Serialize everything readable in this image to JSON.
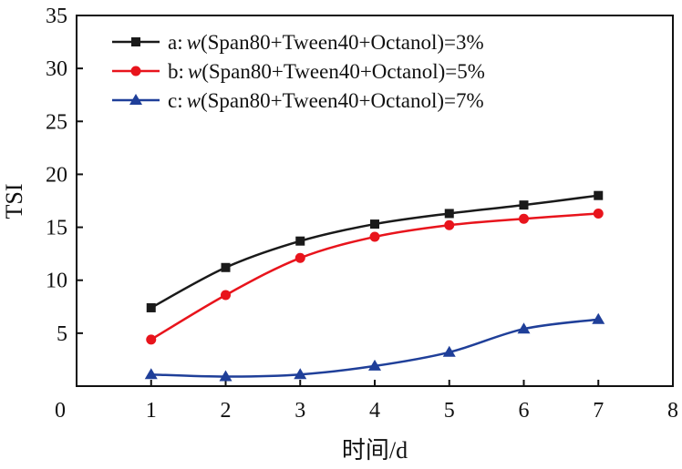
{
  "chart_data": {
    "type": "line",
    "x_ticks": [
      0,
      1,
      2,
      3,
      4,
      5,
      6,
      7,
      8
    ],
    "y_ticks": [
      5,
      10,
      15,
      20,
      25,
      30,
      35
    ],
    "x_origin_label": "0",
    "xlim": [
      0,
      8
    ],
    "ylim": [
      0,
      35
    ],
    "xlabel": "时间/d",
    "ylabel": "TSI",
    "grid": false,
    "legend_position": "top-left",
    "series": [
      {
        "legend_prefix": "a:",
        "legend_w": "w",
        "legend_rest": "(Span80+Tween40+Octanol)=3%",
        "color": "#1a1a1a",
        "marker": "square",
        "x": [
          1,
          2,
          3,
          4,
          5,
          6,
          7
        ],
        "y": [
          7.4,
          11.2,
          13.7,
          15.3,
          16.3,
          17.1,
          18.0
        ]
      },
      {
        "legend_prefix": "b:",
        "legend_w": "w",
        "legend_rest": "(Span80+Tween40+Octanol)=5%",
        "color": "#e8141c",
        "marker": "circle",
        "x": [
          1,
          2,
          3,
          4,
          5,
          6,
          7
        ],
        "y": [
          4.4,
          8.6,
          12.1,
          14.1,
          15.2,
          15.8,
          16.3
        ]
      },
      {
        "legend_prefix": "c:",
        "legend_w": "w",
        "legend_rest": "(Span80+Tween40+Octanol)=7%",
        "color": "#1f3f99",
        "marker": "triangle",
        "x": [
          1,
          2,
          3,
          4,
          5,
          6,
          7
        ],
        "y": [
          1.1,
          0.9,
          1.1,
          1.9,
          3.2,
          5.4,
          6.3
        ]
      }
    ]
  }
}
